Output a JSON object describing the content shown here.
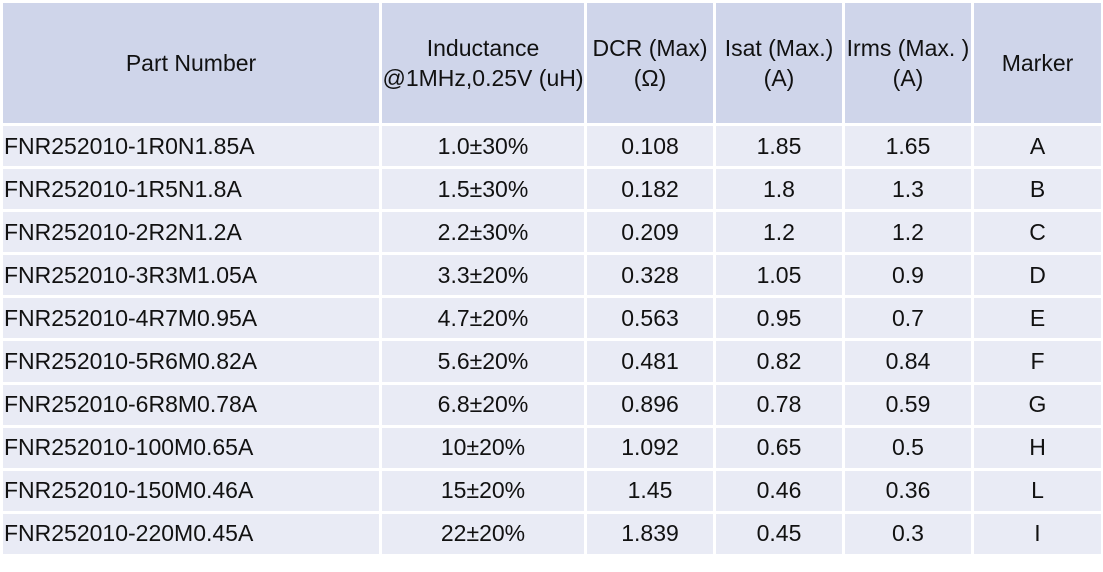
{
  "headers": {
    "part_number": "Part Number",
    "inductance": "Inductance @1MHz,0.25V (uH)",
    "dcr": "DCR (Max) (Ω)",
    "isat": "Isat (Max.) (A)",
    "irms": "Irms (Max. ) (A)",
    "marker": "Marker"
  },
  "rows": [
    {
      "part": "FNR252010-1R0N1.85A",
      "inductance": "1.0±30%",
      "dcr": "0.108",
      "isat": "1.85",
      "irms": "1.65",
      "marker": "A"
    },
    {
      "part": "FNR252010-1R5N1.8A",
      "inductance": "1.5±30%",
      "dcr": "0.182",
      "isat": "1.8",
      "irms": "1.3",
      "marker": "B"
    },
    {
      "part": "FNR252010-2R2N1.2A",
      "inductance": "2.2±30%",
      "dcr": "0.209",
      "isat": "1.2",
      "irms": "1.2",
      "marker": "C"
    },
    {
      "part": "FNR252010-3R3M1.05A",
      "inductance": "3.3±20%",
      "dcr": "0.328",
      "isat": "1.05",
      "irms": "0.9",
      "marker": "D"
    },
    {
      "part": "FNR252010-4R7M0.95A",
      "inductance": "4.7±20%",
      "dcr": "0.563",
      "isat": "0.95",
      "irms": "0.7",
      "marker": "E"
    },
    {
      "part": "FNR252010-5R6M0.82A",
      "inductance": "5.6±20%",
      "dcr": "0.481",
      "isat": "0.82",
      "irms": "0.84",
      "marker": "F"
    },
    {
      "part": "FNR252010-6R8M0.78A",
      "inductance": "6.8±20%",
      "dcr": "0.896",
      "isat": "0.78",
      "irms": "0.59",
      "marker": "G"
    },
    {
      "part": "FNR252010-100M0.65A",
      "inductance": "10±20%",
      "dcr": "1.092",
      "isat": "0.65",
      "irms": "0.5",
      "marker": "H"
    },
    {
      "part": "FNR252010-150M0.46A",
      "inductance": "15±20%",
      "dcr": "1.45",
      "isat": "0.46",
      "irms": "0.36",
      "marker": "L"
    },
    {
      "part": "FNR252010-220M0.45A",
      "inductance": "22±20%",
      "dcr": "1.839",
      "isat": "0.45",
      "irms": "0.3",
      "marker": "I"
    }
  ]
}
